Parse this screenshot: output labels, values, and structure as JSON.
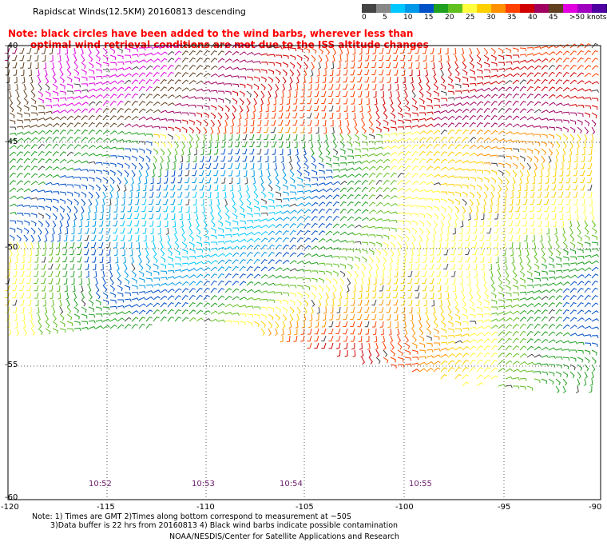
{
  "title": "Rapidscat Winds(12.5KM) 20160813 descending",
  "note": {
    "line1": "Note: black circles have been added to the wind barbs, wherever less than",
    "line2": "optimal wind retrieval conditions are met due to the ISS altitude changes"
  },
  "colorbar": {
    "colors": [
      "#444444",
      "#888888",
      "#00c8ff",
      "#0098e8",
      "#0050c8",
      "#20a020",
      "#60c020",
      "#ffff40",
      "#ffd000",
      "#ff9000",
      "#ff4000",
      "#d00000",
      "#a00060",
      "#604020",
      "#e000e0",
      "#a000c0",
      "#5000a0",
      "#200060"
    ],
    "labels": [
      "0",
      "5",
      "10",
      "15",
      "20",
      "25",
      "30",
      "35",
      "40",
      "45",
      ">50 knots"
    ]
  },
  "axes": {
    "lon_labels": [
      "-120",
      "-115",
      "-110",
      "-105",
      "-100",
      "-95",
      "-90"
    ],
    "lat_labels": [
      "-40",
      "-45",
      "-50",
      "-55",
      "-60"
    ]
  },
  "times": [
    "10:52",
    "10:53",
    "10:54",
    "10:55"
  ],
  "footer": {
    "line1": "Note: 1) Times are GMT 2)Times along bottom correspond to measurement at ~50S",
    "line2": "3)Data buffer is 22 hrs from 20160813 4) Black wind barbs indicate possible contamination",
    "line3": "NOAA/NESDIS/Center for Satellite Applications and Research"
  }
}
